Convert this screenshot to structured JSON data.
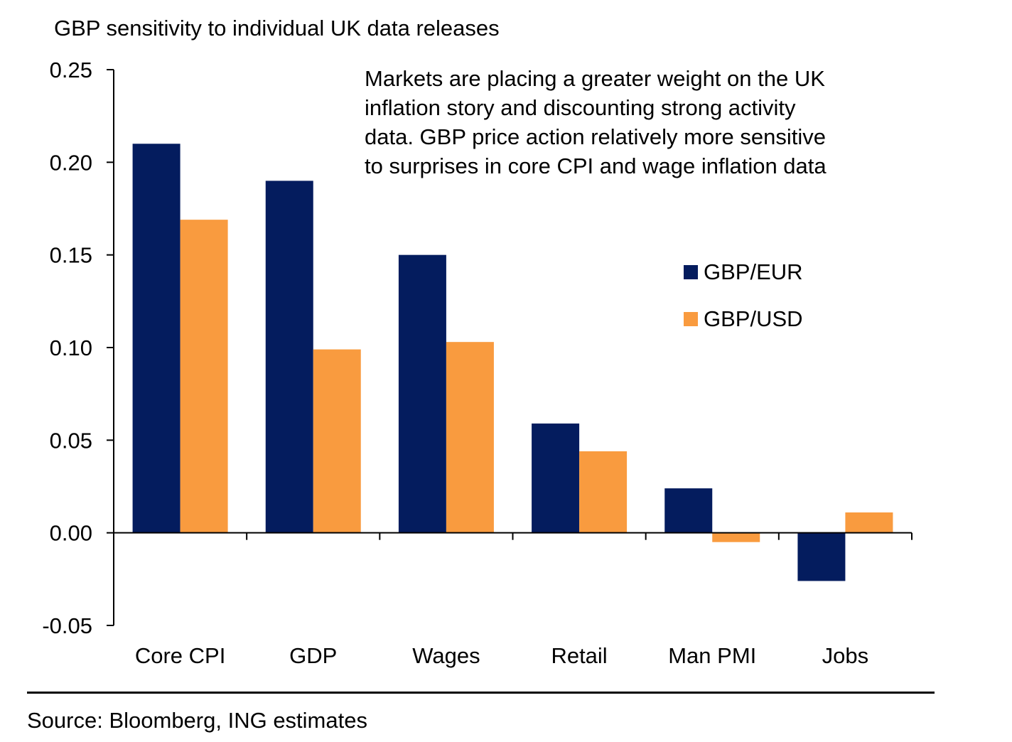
{
  "chart_data": {
    "type": "bar",
    "title": "GBP sensitivity to individual UK data releases",
    "annotation": "Markets are placing a greater weight on the UK inflation story and discounting strong activity data. GBP price action relatively more sensitive to surprises in core CPI and wage inflation data",
    "categories": [
      "Core CPI",
      "GDP",
      "Wages",
      "Retail",
      "Man PMI",
      "Jobs"
    ],
    "series": [
      {
        "name": "GBP/EUR",
        "color": "#041C5E",
        "values": [
          0.21,
          0.19,
          0.15,
          0.059,
          0.024,
          -0.026
        ]
      },
      {
        "name": "GBP/USD",
        "color": "#F99B3F",
        "values": [
          0.169,
          0.099,
          0.103,
          0.044,
          -0.005,
          0.011
        ]
      }
    ],
    "xlabel": "",
    "ylabel": "",
    "ylim": [
      -0.05,
      0.25
    ],
    "yticks": [
      -0.05,
      0.0,
      0.05,
      0.1,
      0.15,
      0.2,
      0.25
    ],
    "ytick_labels": [
      "-0.05",
      "0.00",
      "0.05",
      "0.10",
      "0.15",
      "0.20",
      "0.25"
    ],
    "grid": false,
    "legend_position": "right"
  },
  "source": "Source: Bloomberg, ING estimates"
}
